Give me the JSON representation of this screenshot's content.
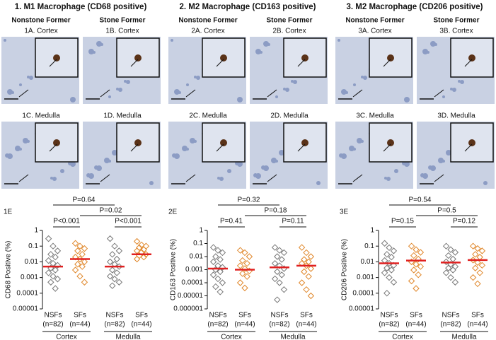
{
  "micrographs": [
    {
      "title": "1. M1 Macrophage (CD68 positive)",
      "columns": [
        "Nonstone Former",
        "Stone Former"
      ],
      "panels": [
        "1A. Cortex",
        "1B. Cortex",
        "1C. Medulla",
        "1D. Medulla"
      ]
    },
    {
      "title": "2. M2 Macrophage (CD163 positive)",
      "columns": [
        "Nonstone Former",
        "Stone Former"
      ],
      "panels": [
        "2A. Cortex",
        "2B. Cortex",
        "2C. Medulla",
        "2D. Medulla"
      ]
    },
    {
      "title": "3. M2 Macrophage (CD206 positive)",
      "columns": [
        "Nonstone Former",
        "Stone Former"
      ],
      "panels": [
        "3A. Cortex",
        "3B. Cortex",
        "3C. Medulla",
        "3D. Medulla"
      ]
    }
  ],
  "chart_data": [
    {
      "type": "strip",
      "label": "1E",
      "ylabel": "CD68 Positive (%)",
      "log": true,
      "ylim": [
        1e-05,
        1
      ],
      "yticks": [
        1,
        0.1,
        0.01,
        0.001,
        0.0001,
        1e-05
      ],
      "cross": [
        "P=0.64",
        "P=0.02"
      ],
      "regions": [
        {
          "name": "Cortex",
          "p": "P<0.001",
          "groups": [
            {
              "name": "NSFs",
              "n": "(n=82)",
              "color": "#777777",
              "median": 0.005,
              "values": [
                0.3,
                0.1,
                0.05,
                0.03,
                0.02,
                0.012,
                0.008,
                0.006,
                0.004,
                0.003,
                0.002,
                0.0012,
                0.0008,
                0.0005,
                0.0002
              ]
            },
            {
              "name": "SFs",
              "n": "(n=44)",
              "color": "#e0872a",
              "median": 0.015,
              "values": [
                0.15,
                0.1,
                0.07,
                0.05,
                0.03,
                0.02,
                0.015,
                0.01,
                0.007,
                0.005,
                0.003,
                0.0012,
                0.0005
              ]
            }
          ]
        },
        {
          "name": "Medulla",
          "p": "P<0.001",
          "groups": [
            {
              "name": "NSFs",
              "n": "(n=82)",
              "color": "#777777",
              "median": 0.005,
              "values": [
                0.3,
                0.1,
                0.05,
                0.03,
                0.015,
                0.01,
                0.007,
                0.005,
                0.003,
                0.002,
                0.0012,
                0.0008,
                0.0005,
                0.0003
              ]
            },
            {
              "name": "SFs",
              "n": "(n=44)",
              "color": "#e0872a",
              "median": 0.03,
              "values": [
                0.2,
                0.12,
                0.1,
                0.08,
                0.06,
                0.05,
                0.04,
                0.03,
                0.025,
                0.02,
                0.015
              ]
            }
          ]
        }
      ]
    },
    {
      "type": "strip",
      "label": "2E",
      "ylabel": "CD163 Positive (%)",
      "log": true,
      "ylim": [
        1e-06,
        1
      ],
      "yticks": [
        1,
        0.1,
        0.01,
        0.001,
        0.0001,
        1e-05,
        1e-06
      ],
      "cross": [
        "P=0.32",
        "P=0.18"
      ],
      "regions": [
        {
          "name": "Cortex",
          "p": "P=0.41",
          "groups": [
            {
              "name": "NSFs",
              "n": "(n=82)",
              "color": "#777777",
              "median": 0.0012,
              "values": [
                0.05,
                0.03,
                0.02,
                0.01,
                0.006,
                0.004,
                0.002,
                0.0015,
                0.001,
                0.0007,
                0.0004,
                0.0002,
                0.0001,
                5e-05,
                2e-05
              ]
            },
            {
              "name": "SFs",
              "n": "(n=44)",
              "color": "#e0872a",
              "median": 0.001,
              "values": [
                0.03,
                0.02,
                0.01,
                0.005,
                0.003,
                0.002,
                0.0012,
                0.0008,
                0.0005,
                0.0003,
                0.0001,
                4e-05
              ]
            }
          ]
        },
        {
          "name": "Medulla",
          "p": "P=0.11",
          "groups": [
            {
              "name": "NSFs",
              "n": "(n=82)",
              "color": "#777777",
              "median": 0.0015,
              "values": [
                0.05,
                0.03,
                0.02,
                0.01,
                0.006,
                0.003,
                0.002,
                0.0012,
                0.0007,
                0.0004,
                0.0002,
                0.0001,
                3e-05,
                5e-06
              ]
            },
            {
              "name": "SFs",
              "n": "(n=44)",
              "color": "#e0872a",
              "median": 0.002,
              "values": [
                0.05,
                0.02,
                0.01,
                0.006,
                0.004,
                0.003,
                0.002,
                0.0012,
                0.0007,
                0.0003,
                0.0001,
                3e-05,
                1e-05
              ]
            }
          ]
        }
      ]
    },
    {
      "type": "strip",
      "label": "3E",
      "ylabel": "CD206 Positive (%)",
      "log": true,
      "ylim": [
        1e-05,
        1
      ],
      "yticks": [
        1,
        0.1,
        0.01,
        0.001,
        0.0001,
        1e-05
      ],
      "cross": [
        "P=0.54",
        "P=0.5"
      ],
      "regions": [
        {
          "name": "Cortex",
          "p": "P=0.15",
          "groups": [
            {
              "name": "NSFs",
              "n": "(n=82)",
              "color": "#777777",
              "median": 0.008,
              "values": [
                0.15,
                0.08,
                0.05,
                0.03,
                0.02,
                0.012,
                0.008,
                0.006,
                0.004,
                0.003,
                0.002,
                0.001,
                0.0005,
                0.0001
              ]
            },
            {
              "name": "SFs",
              "n": "(n=44)",
              "color": "#e0872a",
              "median": 0.012,
              "values": [
                0.1,
                0.06,
                0.04,
                0.025,
                0.015,
                0.01,
                0.007,
                0.005,
                0.003,
                0.0015,
                0.0006,
                0.0002
              ]
            }
          ]
        },
        {
          "name": "Medulla",
          "p": "P=0.12",
          "groups": [
            {
              "name": "NSFs",
              "n": "(n=82)",
              "color": "#777777",
              "median": 0.009,
              "values": [
                0.1,
                0.06,
                0.04,
                0.025,
                0.015,
                0.01,
                0.007,
                0.005,
                0.004,
                0.003,
                0.002,
                0.001,
                0.0005
              ]
            },
            {
              "name": "SFs",
              "n": "(n=44)",
              "color": "#e0872a",
              "median": 0.013,
              "values": [
                0.1,
                0.07,
                0.05,
                0.03,
                0.02,
                0.013,
                0.009,
                0.006,
                0.004,
                0.002,
                0.001,
                0.0004
              ]
            }
          ]
        }
      ]
    }
  ]
}
